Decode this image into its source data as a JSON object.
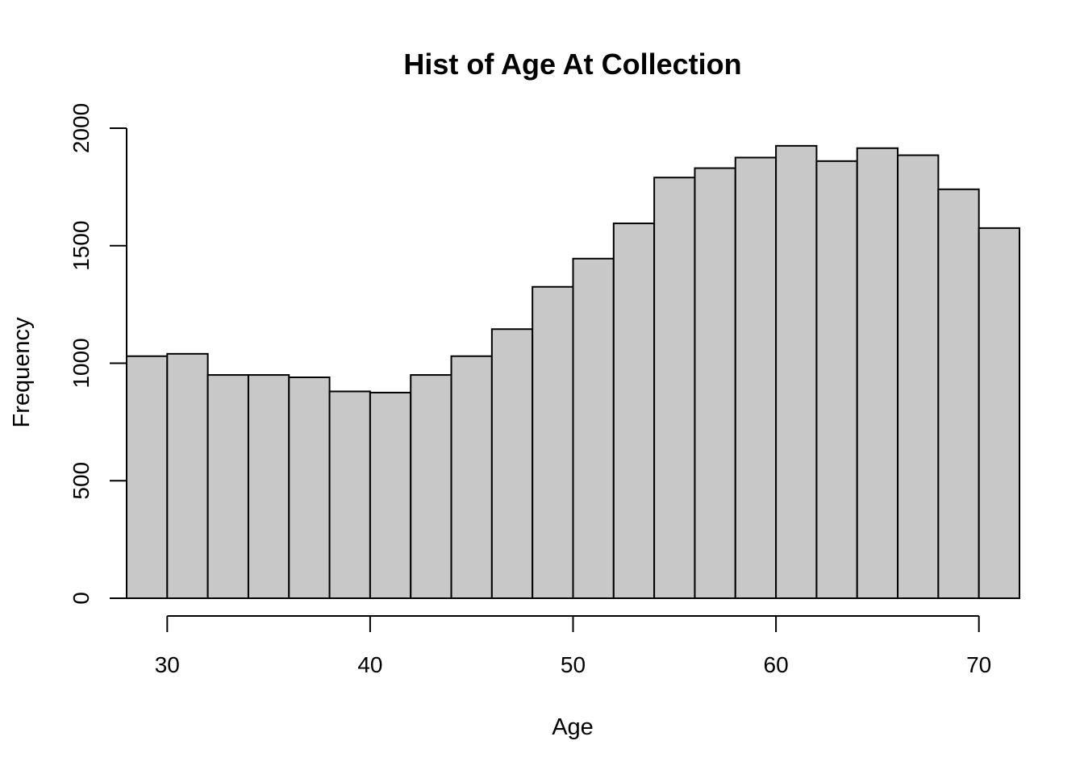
{
  "chart_data": {
    "type": "bar",
    "title": "Hist of Age At Collection",
    "xlabel": "Age",
    "ylabel": "Frequency",
    "xlim": [
      28,
      72
    ],
    "ylim": [
      0,
      2000
    ],
    "x_ticks": [
      30,
      40,
      50,
      60,
      70
    ],
    "y_ticks": [
      0,
      500,
      1000,
      1500,
      2000
    ],
    "bin_width": 2,
    "bin_starts": [
      28,
      30,
      32,
      34,
      36,
      38,
      40,
      42,
      44,
      46,
      48,
      50,
      52,
      54,
      56,
      58,
      60,
      62,
      64,
      66,
      68,
      70
    ],
    "values": [
      1030,
      1040,
      950,
      950,
      940,
      880,
      875,
      950,
      1030,
      1145,
      1325,
      1445,
      1595,
      1790,
      1830,
      1875,
      1925,
      1860,
      1915,
      1885,
      1740,
      1575
    ],
    "grid": false,
    "bar_color": "#c8c8c8",
    "edge_color": "#000000"
  }
}
